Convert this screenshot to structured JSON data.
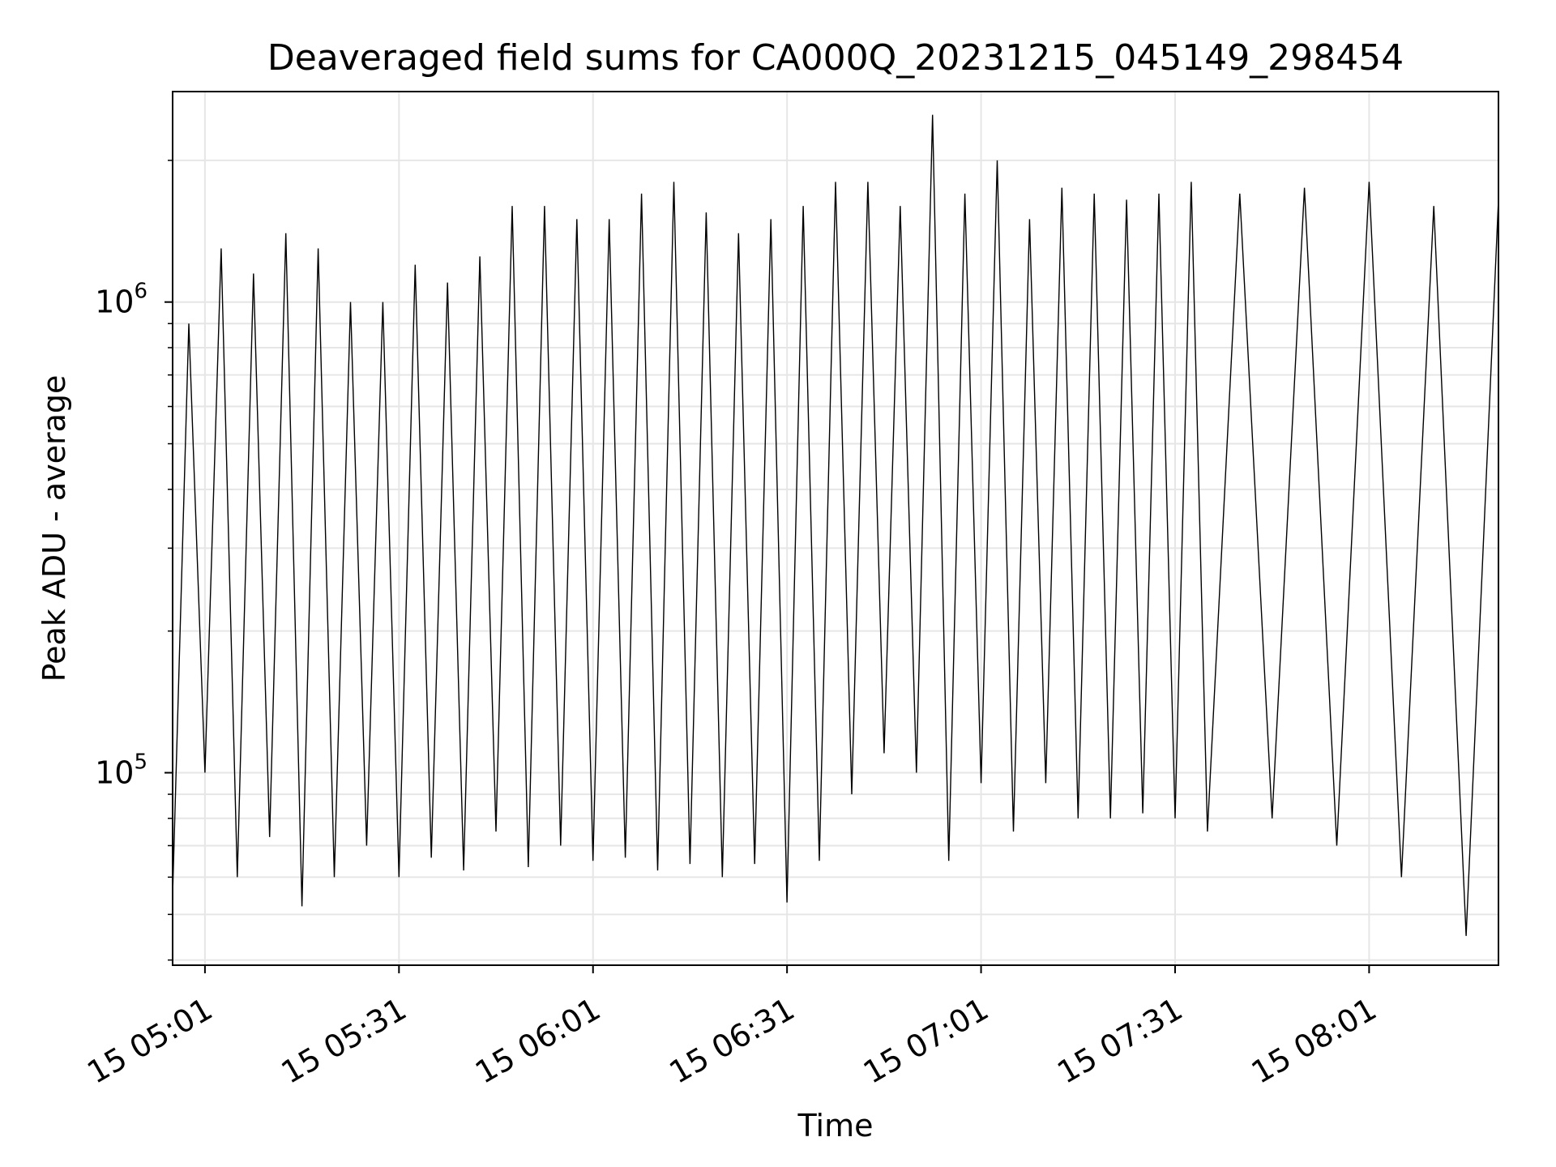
{
  "chart_data": {
    "type": "line",
    "title": "Deaveraged field sums for CA000Q_20231215_045149_298454",
    "xlabel": "Time",
    "ylabel": "Peak ADU - average",
    "yscale": "log",
    "grid": true,
    "legend": "none",
    "x_start": "2023-12-15 04:56",
    "x_end": "2023-12-15 08:21",
    "xlim_minutes_from_start": [
      0,
      205
    ],
    "ylim": [
      39000,
      2800000
    ],
    "x_ticks": [
      {
        "minute": 5,
        "label": "15 05:01"
      },
      {
        "minute": 35,
        "label": "15 05:31"
      },
      {
        "minute": 65,
        "label": "15 06:01"
      },
      {
        "minute": 95,
        "label": "15 06:31"
      },
      {
        "minute": 125,
        "label": "15 07:01"
      },
      {
        "minute": 155,
        "label": "15 07:31"
      },
      {
        "minute": 185,
        "label": "15 08:01"
      }
    ],
    "y_major_ticks": [
      {
        "value": 100000,
        "label": "10",
        "exp": "5"
      },
      {
        "value": 1000000,
        "label": "10",
        "exp": "6"
      }
    ],
    "series": [
      {
        "color": "#000000",
        "x_minutes": [
          0,
          2.5,
          5,
          7.5,
          10,
          12.5,
          15,
          17.5,
          20,
          22.5,
          25,
          27.5,
          30,
          32.5,
          35,
          37.5,
          40,
          42.5,
          45,
          47.5,
          50,
          52.5,
          55,
          57.5,
          60,
          62.5,
          65,
          67.5,
          70,
          72.5,
          75,
          77.5,
          80,
          82.5,
          85,
          87.5,
          90,
          92.5,
          95,
          97.5,
          100,
          102.5,
          105,
          107.5,
          110,
          112.5,
          115,
          117.5,
          120,
          122.5,
          125,
          127.5,
          130,
          132.5,
          135,
          137.5,
          140,
          142.5,
          145,
          147.5,
          150,
          152.5,
          155,
          157.5,
          160,
          165,
          170,
          175,
          180,
          185,
          190,
          195,
          200,
          205
        ],
        "values": [
          55000,
          900000,
          100000,
          1300000,
          60000,
          1150000,
          73000,
          1400000,
          52000,
          1300000,
          60000,
          1000000,
          70000,
          1000000,
          60000,
          1200000,
          66000,
          1100000,
          62000,
          1250000,
          75000,
          1600000,
          63000,
          1600000,
          70000,
          1500000,
          65000,
          1500000,
          66000,
          1700000,
          62000,
          1800000,
          64000,
          1550000,
          60000,
          1400000,
          64000,
          1500000,
          53000,
          1600000,
          65000,
          1800000,
          90000,
          1800000,
          110000,
          1600000,
          100000,
          2500000,
          65000,
          1700000,
          95000,
          2000000,
          75000,
          1500000,
          95000,
          1750000,
          80000,
          1700000,
          80000,
          1650000,
          82000,
          1700000,
          80000,
          1800000,
          75000,
          1700000,
          80000,
          1750000,
          70000,
          1800000,
          60000,
          1600000,
          45000,
          1650000
        ]
      }
    ]
  }
}
